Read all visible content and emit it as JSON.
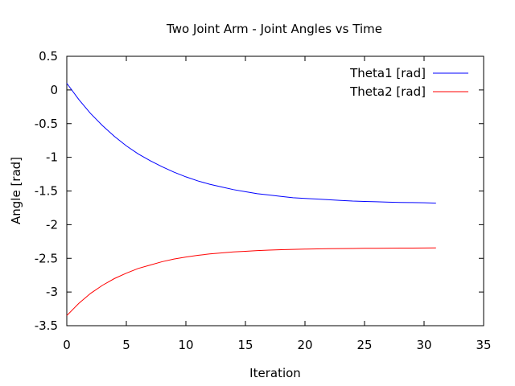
{
  "chart_data": {
    "type": "line",
    "title": "Two Joint Arm - Joint Angles vs Time",
    "xlabel": "Iteration",
    "ylabel": "Angle [rad]",
    "xlim": [
      0,
      35
    ],
    "ylim": [
      -3.5,
      0.5
    ],
    "xticks": [
      0,
      5,
      10,
      15,
      20,
      25,
      30,
      35
    ],
    "yticks": [
      0.5,
      0,
      -0.5,
      -1,
      -1.5,
      -2,
      -2.5,
      -3,
      -3.5
    ],
    "xtick_labels": [
      "0",
      "5",
      "10",
      "15",
      "20",
      "25",
      "30",
      "35"
    ],
    "ytick_labels": [
      "0.5",
      "0",
      "-0.5",
      "-1",
      "-1.5",
      "-2",
      "-2.5",
      "-3",
      "-3.5"
    ],
    "grid": false,
    "legend_position": "top-right",
    "x": [
      0,
      1,
      2,
      3,
      4,
      5,
      6,
      7,
      8,
      9,
      10,
      11,
      12,
      13,
      14,
      15,
      16,
      17,
      18,
      19,
      20,
      21,
      22,
      23,
      24,
      25,
      26,
      27,
      28,
      29,
      30,
      31
    ],
    "series": [
      {
        "name": "Theta1 [rad]",
        "color": "#0000ff",
        "values": [
          0.1,
          -0.14,
          -0.35,
          -0.53,
          -0.69,
          -0.83,
          -0.95,
          -1.05,
          -1.14,
          -1.22,
          -1.29,
          -1.35,
          -1.4,
          -1.44,
          -1.48,
          -1.51,
          -1.54,
          -1.56,
          -1.58,
          -1.6,
          -1.61,
          -1.62,
          -1.63,
          -1.64,
          -1.65,
          -1.655,
          -1.66,
          -1.665,
          -1.67,
          -1.672,
          -1.675,
          -1.68
        ]
      },
      {
        "name": "Theta2 [rad]",
        "color": "#ff0000",
        "values": [
          -3.35,
          -3.17,
          -3.02,
          -2.9,
          -2.8,
          -2.72,
          -2.65,
          -2.6,
          -2.55,
          -2.51,
          -2.48,
          -2.455,
          -2.435,
          -2.42,
          -2.405,
          -2.395,
          -2.385,
          -2.378,
          -2.372,
          -2.367,
          -2.363,
          -2.36,
          -2.357,
          -2.355,
          -2.353,
          -2.351,
          -2.35,
          -2.349,
          -2.348,
          -2.347,
          -2.346,
          -2.345
        ]
      }
    ]
  }
}
